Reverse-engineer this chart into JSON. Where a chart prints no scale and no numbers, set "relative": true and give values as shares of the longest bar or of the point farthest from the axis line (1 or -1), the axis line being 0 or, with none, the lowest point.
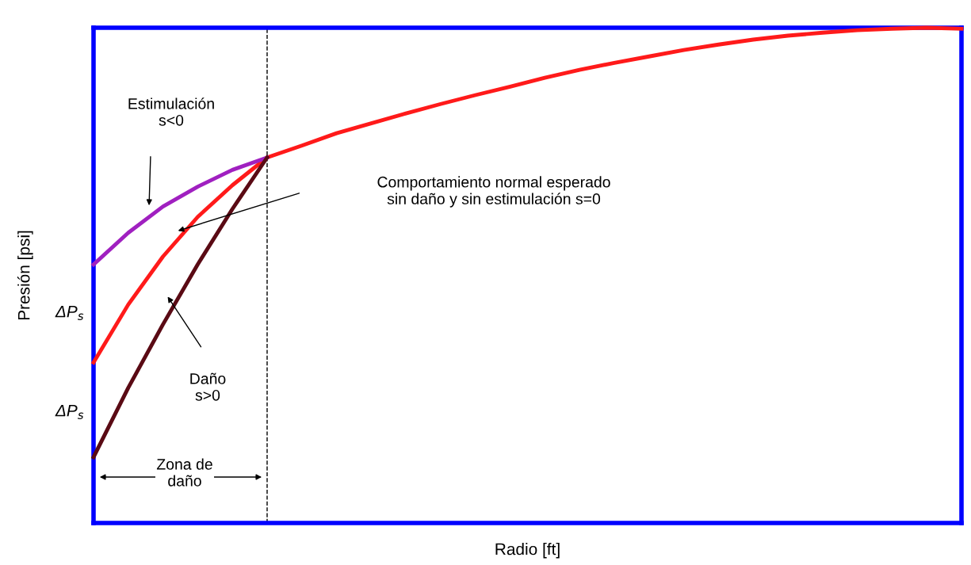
{
  "chart_data": {
    "type": "line",
    "relative": true,
    "xlabel": "Radio [ft]",
    "ylabel": "Presión [psi]",
    "categories": [
      null,
      null,
      null,
      null,
      null,
      null,
      null,
      null,
      null,
      null,
      null,
      null,
      null,
      null,
      null,
      null,
      null,
      null,
      null,
      null,
      null,
      null,
      null,
      null,
      null,
      null
    ],
    "series": [
      {
        "color": "#ff1a1a",
        "values": [
          0.324,
          0.441,
          0.538,
          0.618,
          0.682,
          0.738,
          0.762,
          0.787,
          0.807,
          0.827,
          0.846,
          0.864,
          0.881,
          0.899,
          0.915,
          0.929,
          0.942,
          0.955,
          0.966,
          0.976,
          0.984,
          0.99,
          0.995,
          0.998,
          1.0,
          0.998
        ]
      },
      {
        "color": "#a020c0",
        "values": [
          0.522,
          0.586,
          0.639,
          0.679,
          0.713,
          0.738,
          null,
          null,
          null,
          null,
          null,
          null,
          null,
          null,
          null,
          null,
          null,
          null,
          null,
          null,
          null,
          null,
          null,
          null,
          null,
          null
        ]
      },
      {
        "color": "#5a0a14",
        "values": [
          0.133,
          0.273,
          0.401,
          0.522,
          0.634,
          0.738,
          null,
          null,
          null,
          null,
          null,
          null,
          null,
          null,
          null,
          null,
          null,
          null,
          null,
          null,
          null,
          null,
          null,
          null,
          null,
          null
        ]
      }
    ],
    "annotations": [
      "Estimulación\ns<0",
      "Comportamiento normal esperado\nsin daño y sin estimulación s=0",
      "Daño\ns>0",
      "Zona de\ndaño",
      "ΔP$_{s}$",
      "ΔP$_{s}$"
    ],
    "marker": "none",
    "line_style": "solid"
  }
}
